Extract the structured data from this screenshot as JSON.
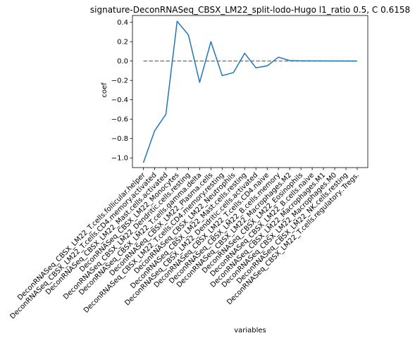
{
  "chart_data": {
    "type": "line",
    "title": "signature-DeconRNASeq_CBSX_LM22_split-lodo-Hugo l1_ratio 0.5, C 0.6158",
    "xlabel": "variables",
    "ylabel": "coef",
    "ylim": [
      -1.1,
      0.47
    ],
    "yticks": [
      -1.0,
      -0.8,
      -0.6,
      -0.4,
      -0.2,
      0.0,
      0.2,
      0.4
    ],
    "ytick_labels": [
      "−1.0",
      "−0.8",
      "−0.6",
      "−0.4",
      "−0.2",
      "0.0",
      "0.2",
      "0.4"
    ],
    "reference_line": {
      "y": 0,
      "style": "dashed",
      "color": "#808080"
    },
    "grid": false,
    "series_color": "#1f77b4",
    "categories": [
      "DeconRNASeq_CBSX_LM22_T.cells.follicular.helper",
      "DeconRNASeq_CBSX_LM22_T.cells.CD4.memory.activated",
      "DeconRNASeq_CBSX_LM22_Mast.cells.activated",
      "DeconRNASeq_CBSX_LM22_Monocytes",
      "DeconRNASeq_CBSX_LM22_Dendritic.cells.resting",
      "DeconRNASeq_CBSX_LM22_T.cells.gamma.delta",
      "DeconRNASeq_CBSX_LM22_Plasma.cells",
      "DeconRNASeq_CBSX_LM22_T.cells.CD4.memory.resting",
      "DeconRNASeq_CBSX_LM22_Neutrophils",
      "DeconRNASeq_CBSX_LM22_Mast.cells.resting",
      "DeconRNASeq_CBSX_LM22_Dendritic.cells.activated",
      "DeconRNASeq_CBSX_LM22_T.cells.CD4.naive",
      "DeconRNASeq_CBSX_LM22_B.cells.memory",
      "DeconRNASeq_CBSX_LM22_Macrophages.M2",
      "DeconRNASeq_CBSX_LM22_Eosinophils",
      "DeconRNASeq_CBSX_LM22_B.cells.naive",
      "DeconRNASeq_CBSX_LM22_Macrophages.M1",
      "DeconRNASeq_CBSX_LM22_Macrophages.M0",
      "DeconRNASeq_CBSX_LM22_NK.cells.resting",
      "DeconRNASeq_CBSX_LM22_T.cells.regulatory..Tregs."
    ],
    "values": [
      -1.05,
      -0.72,
      -0.55,
      0.41,
      0.27,
      -0.22,
      0.2,
      -0.15,
      -0.12,
      0.08,
      -0.07,
      -0.05,
      0.04,
      0.005,
      0.002,
      0.001,
      0.001,
      0.0,
      0.0,
      0.0
    ]
  }
}
